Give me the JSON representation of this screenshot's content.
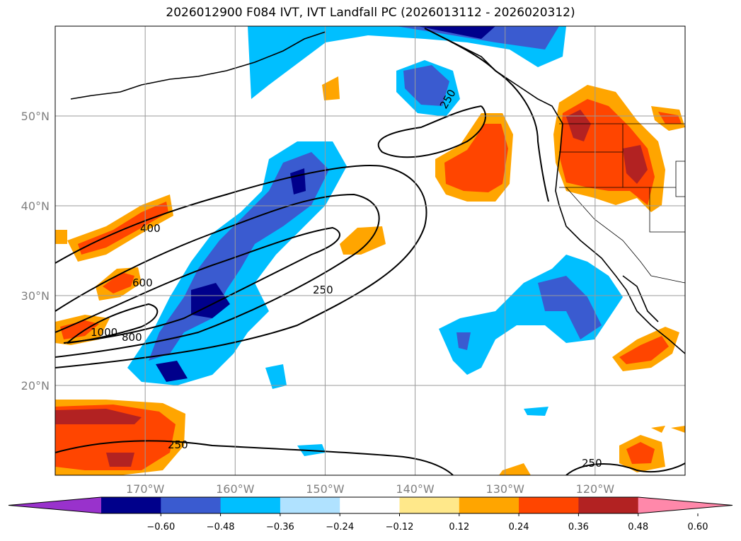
{
  "title": "2026012900 F084 IVT, IVT Landfall PC (2026013112 - 2026020312)",
  "map": {
    "lat_labels": [
      "50°N",
      "40°N",
      "30°N",
      "20°N"
    ],
    "lon_labels": [
      "170°W",
      "160°W",
      "150°W",
      "140°W",
      "130°W",
      "120°W"
    ],
    "lat_lines": [
      50,
      40,
      30,
      20
    ],
    "lon_lines": [
      -170,
      -160,
      -150,
      -140,
      -130,
      -120
    ],
    "extent": {
      "lon": [
        -180,
        -110
      ],
      "lat": [
        10,
        60
      ]
    },
    "ivt_contour_labels": [
      "400",
      "600",
      "1000",
      "800",
      "250",
      "250",
      "250",
      "250"
    ]
  },
  "colorbar": {
    "ticks": [
      "−0.60",
      "−0.48",
      "−0.36",
      "−0.24",
      "−0.12",
      "0.12",
      "0.24",
      "0.36",
      "0.48",
      "0.60"
    ],
    "colors": [
      "#9932cc",
      "#00008b",
      "#3a5bd0",
      "#00bfff",
      "#b0e2ff",
      "#ffffff",
      "#ffe88a",
      "#ffa500",
      "#ff4500",
      "#b22222",
      "#ff88aa"
    ]
  }
}
